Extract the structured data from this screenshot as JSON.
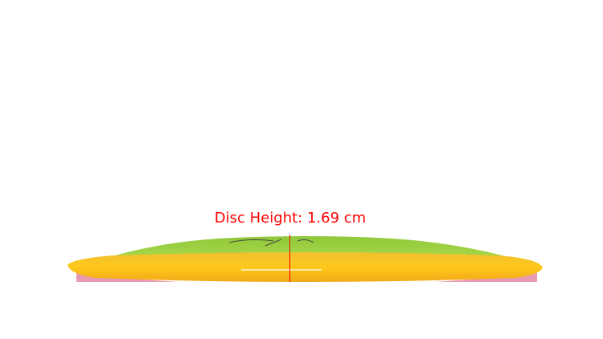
{
  "annotation": {
    "text": "Disc Height: 1.69 cm",
    "color": "#ff0000"
  },
  "disc": {
    "top_color": "#9ccf3a",
    "rim_color": "#f5b51a",
    "underside_color": "#e79ab0"
  }
}
